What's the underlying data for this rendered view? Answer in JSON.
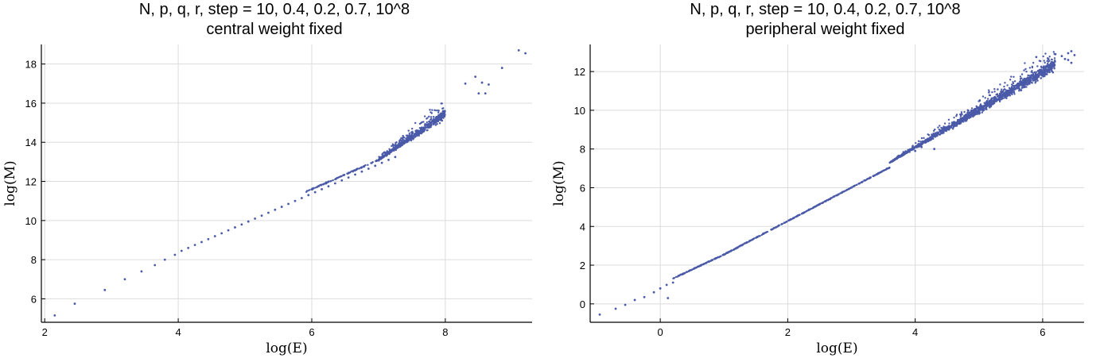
{
  "chart_data": [
    {
      "type": "scatter",
      "title": [
        "N, p, q, r, step = 10, 0.4, 0.2, 0.7, 10^8",
        "central weight fixed"
      ],
      "xlabel": "log(E)",
      "ylabel": "log(M)",
      "xlim": [
        1.95,
        9.3
      ],
      "ylim": [
        4.8,
        19.0
      ],
      "xticks": [
        2,
        4,
        6,
        8
      ],
      "yticks": [
        6,
        8,
        10,
        12,
        14,
        16,
        18
      ],
      "grid": true,
      "marker_color": "#4a5aa8",
      "points": [
        [
          2.15,
          5.15
        ],
        [
          2.45,
          5.75
        ],
        [
          2.9,
          6.45
        ],
        [
          3.2,
          7.0
        ],
        [
          3.45,
          7.4
        ],
        [
          3.65,
          7.72
        ],
        [
          3.8,
          8.0
        ],
        [
          3.95,
          8.25
        ],
        [
          4.05,
          8.45
        ],
        [
          4.15,
          8.6
        ],
        [
          4.25,
          8.75
        ],
        [
          4.35,
          8.9
        ],
        [
          4.45,
          9.05
        ],
        [
          4.55,
          9.2
        ],
        [
          4.65,
          9.35
        ],
        [
          4.75,
          9.5
        ],
        [
          4.85,
          9.65
        ],
        [
          4.95,
          9.8
        ],
        [
          5.05,
          9.95
        ],
        [
          5.15,
          10.1
        ],
        [
          5.25,
          10.25
        ],
        [
          5.35,
          10.4
        ],
        [
          5.45,
          10.55
        ],
        [
          5.55,
          10.7
        ],
        [
          5.65,
          10.85
        ],
        [
          5.75,
          11.0
        ],
        [
          5.85,
          11.15
        ],
        [
          5.95,
          11.3
        ],
        [
          6.05,
          11.45
        ],
        [
          6.15,
          11.6
        ],
        [
          6.25,
          11.75
        ],
        [
          6.35,
          11.9
        ],
        [
          6.45,
          12.05
        ],
        [
          6.55,
          12.2
        ],
        [
          6.65,
          12.35
        ],
        [
          6.75,
          12.5
        ],
        [
          6.85,
          12.65
        ],
        [
          6.95,
          12.8
        ],
        [
          7.05,
          12.95
        ],
        [
          7.15,
          13.1
        ],
        [
          7.25,
          13.25
        ],
        [
          9.1,
          18.7
        ],
        [
          9.2,
          18.55
        ],
        [
          8.85,
          17.8
        ],
        [
          8.45,
          17.35
        ],
        [
          8.55,
          17.05
        ],
        [
          8.65,
          16.95
        ],
        [
          8.3,
          17.0
        ],
        [
          8.5,
          16.5
        ],
        [
          8.6,
          16.5
        ]
      ]
    },
    {
      "type": "scatter",
      "title": [
        "N, p, q, r, step = 10, 0.4, 0.2, 0.7, 10^8",
        "peripheral weight fixed"
      ],
      "xlabel": "log(E)",
      "ylabel": "log(M)",
      "xlim": [
        -1.1,
        6.65
      ],
      "ylim": [
        -0.95,
        13.4
      ],
      "xticks": [
        0,
        2,
        4,
        6
      ],
      "yticks": [
        0,
        2,
        4,
        6,
        8,
        10,
        12
      ],
      "grid": true,
      "marker_color": "#4a5aa8",
      "points": [
        [
          -0.95,
          -0.55
        ],
        [
          -0.7,
          -0.25
        ],
        [
          -0.55,
          -0.05
        ],
        [
          -0.4,
          0.2
        ],
        [
          -0.25,
          0.35
        ],
        [
          -0.1,
          0.6
        ],
        [
          0.0,
          0.8
        ],
        [
          0.1,
          0.98
        ],
        [
          0.12,
          0.3
        ],
        [
          0.2,
          1.1
        ],
        [
          6.2,
          12.9
        ],
        [
          6.3,
          12.8
        ],
        [
          6.35,
          12.65
        ],
        [
          6.4,
          12.95
        ],
        [
          6.45,
          13.05
        ],
        [
          6.5,
          12.85
        ],
        [
          6.45,
          12.45
        ],
        [
          6.4,
          12.6
        ],
        [
          5.9,
          12.75
        ],
        [
          4.0,
          7.9
        ],
        [
          4.3,
          8.0
        ],
        [
          4.1,
          8.1
        ]
      ]
    }
  ]
}
